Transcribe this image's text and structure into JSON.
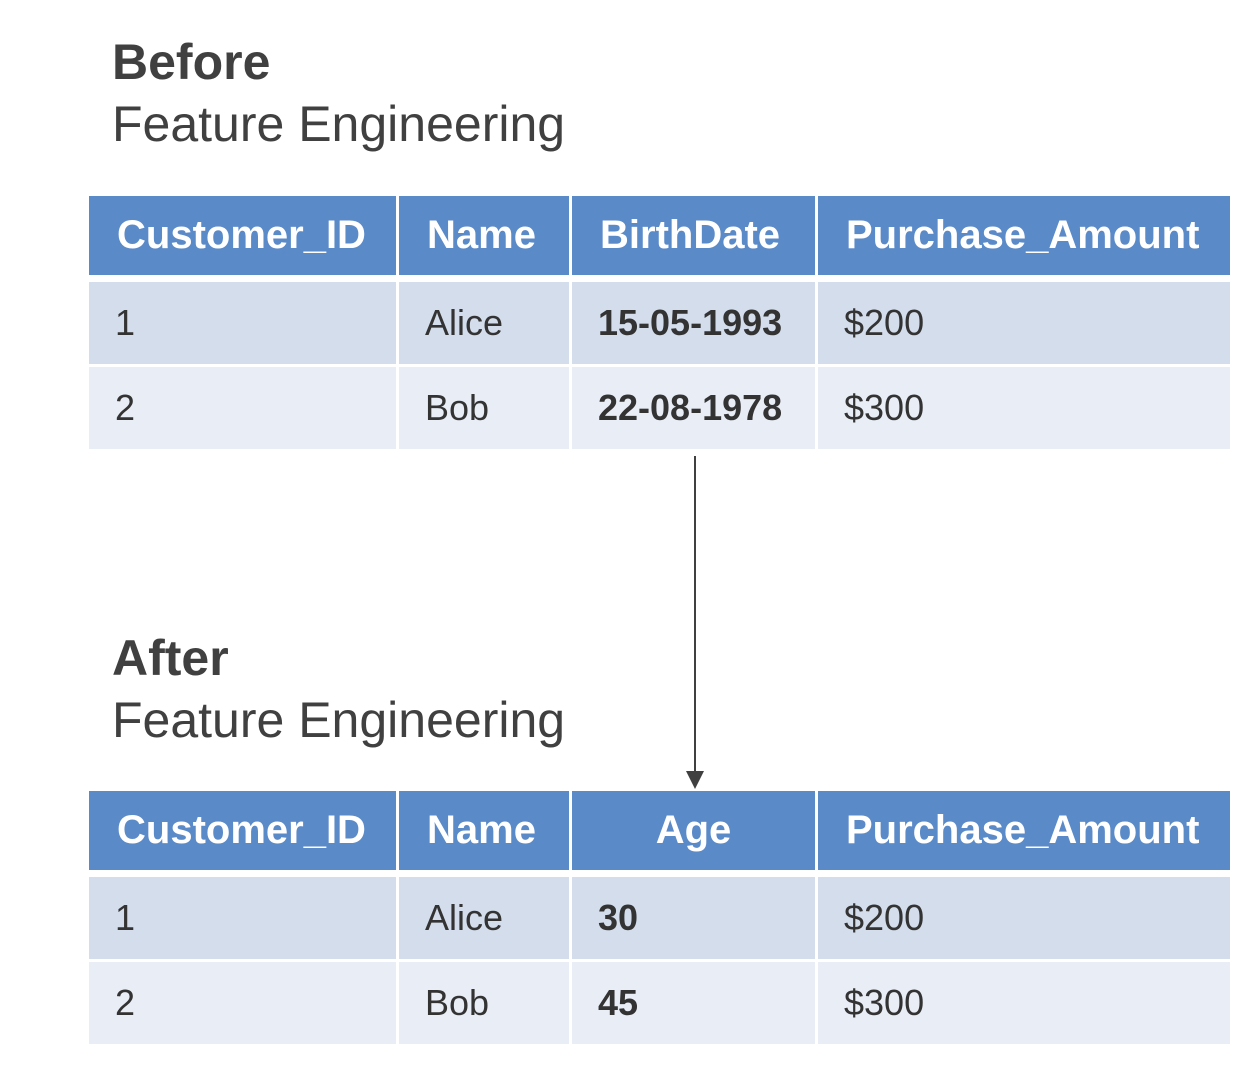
{
  "before": {
    "title": "Before",
    "subtitle": "Feature Engineering",
    "headers": [
      "Customer_ID",
      "Name",
      "BirthDate",
      "Purchase_Amount"
    ],
    "rows": [
      [
        "1",
        "Alice",
        "15-05-1993",
        "$200"
      ],
      [
        "2",
        "Bob",
        "22-08-1978",
        "$300"
      ]
    ]
  },
  "after": {
    "title": "After",
    "subtitle": "Feature Engineering",
    "headers": [
      "Customer_ID",
      "Name",
      "Age",
      "Purchase_Amount"
    ],
    "rows": [
      [
        "1",
        "Alice",
        "30",
        "$200"
      ],
      [
        "2",
        "Bob",
        "45",
        "$300"
      ]
    ]
  },
  "colors": {
    "header_bg": "#5b8ac8",
    "row_odd_bg": "#d3ddec",
    "row_even_bg": "#e8edf6",
    "text": "#404040"
  }
}
